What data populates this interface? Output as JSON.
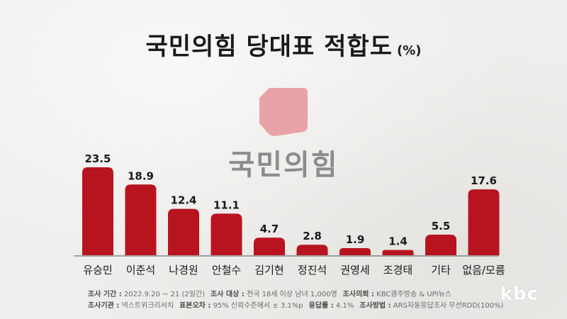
{
  "title": "국민의힘 당대표 적합도",
  "unit": "(%)",
  "logo": {
    "text": "국민의힘",
    "color": "#e8a3a8"
  },
  "brand": "kbc",
  "colors": {
    "bar": "#b8141f",
    "baseline": "#555555"
  },
  "footer": {
    "line1": [
      {
        "label": "조사 기간 :",
        "value": "2022.9.20 ~ 21 (2일간)"
      },
      {
        "label": "조사 대상 :",
        "value": "전국 18세 이상 남녀 1,000명"
      },
      {
        "label": "조사의뢰 :",
        "value": "KBC광주방송 & UPI뉴스"
      }
    ],
    "line2": [
      {
        "label": "조사기관 :",
        "value": "넥스트위크리서치"
      },
      {
        "label": "표본오차 :",
        "value": "95% 신뢰수준에서 ± 3.1%p"
      },
      {
        "label": "응답률 :",
        "value": "4.1%"
      },
      {
        "label": "조사방법 :",
        "value": "ARS자동응답조사 무선RDD(100%)"
      }
    ]
  },
  "chart_data": {
    "type": "bar",
    "title": "국민의힘 당대표 적합도",
    "unit": "(%)",
    "categories": [
      "유승민",
      "이준석",
      "나경원",
      "안철수",
      "김기현",
      "정진석",
      "권영세",
      "조경태",
      "기타",
      "없음/모름"
    ],
    "values": [
      23.5,
      18.9,
      12.4,
      11.1,
      4.7,
      2.8,
      1.9,
      1.4,
      5.5,
      17.6
    ],
    "data_labels": [
      "23.5",
      "18.9",
      "12.4",
      "11.1",
      "4.7",
      "2.8",
      "1.9",
      "1.4",
      "5.5",
      "17.6"
    ],
    "ylim": [
      0,
      23.5
    ],
    "grid": false,
    "legend": "none"
  }
}
